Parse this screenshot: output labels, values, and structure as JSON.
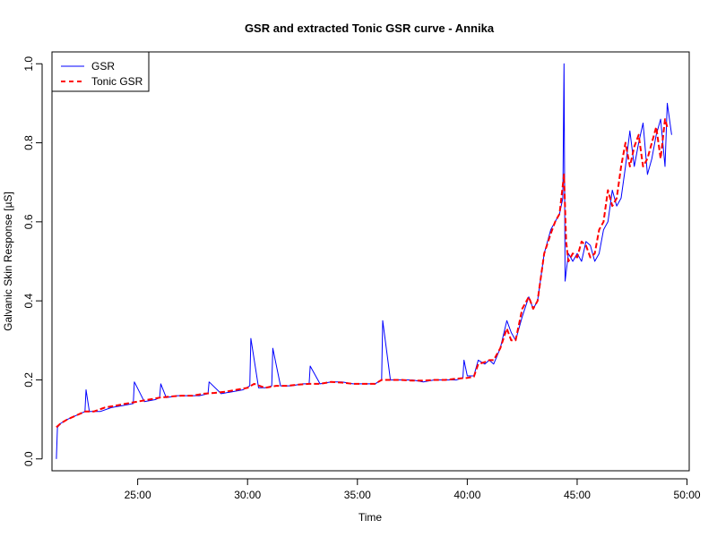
{
  "chart_data": {
    "type": "line",
    "title": "GSR and extracted Tonic GSR curve - Annika",
    "xlabel": "Time",
    "ylabel": "Galvanic Skin Response [µS]",
    "xlim_minutes": [
      21.1,
      50.1
    ],
    "ylim": [
      -0.03,
      1.03
    ],
    "x_ticks": [
      {
        "value": 25,
        "label": "25:00"
      },
      {
        "value": 30,
        "label": "30:00"
      },
      {
        "value": 35,
        "label": "35:00"
      },
      {
        "value": 40,
        "label": "40:00"
      },
      {
        "value": 45,
        "label": "45:00"
      },
      {
        "value": 50,
        "label": "50:00"
      }
    ],
    "y_ticks": [
      {
        "value": 0.0,
        "label": "0.0"
      },
      {
        "value": 0.2,
        "label": "0.2"
      },
      {
        "value": 0.4,
        "label": "0.4"
      },
      {
        "value": 0.6,
        "label": "0.6"
      },
      {
        "value": 0.8,
        "label": "0.8"
      },
      {
        "value": 1.0,
        "label": "1.0"
      }
    ],
    "legend": {
      "position": "top-left",
      "entries": [
        {
          "label": "GSR",
          "color": "#0000ff",
          "style": "solid"
        },
        {
          "label": "Tonic GSR",
          "color": "#ff0000",
          "style": "dashed"
        }
      ]
    },
    "series": [
      {
        "name": "GSR",
        "color": "#0000ff",
        "x": [
          21.3,
          21.35,
          21.5,
          21.8,
          22.2,
          22.6,
          22.65,
          22.8,
          23.3,
          23.8,
          24.3,
          24.8,
          24.85,
          25.3,
          25.8,
          26.0,
          26.05,
          26.3,
          26.8,
          27.3,
          27.8,
          28.2,
          28.25,
          28.8,
          29.3,
          29.8,
          30.1,
          30.15,
          30.5,
          30.8,
          31.1,
          31.15,
          31.5,
          32.0,
          32.5,
          32.8,
          32.85,
          33.3,
          33.8,
          34.3,
          34.8,
          35.3,
          35.8,
          36.1,
          36.15,
          36.5,
          37.0,
          37.5,
          38.0,
          38.5,
          39.0,
          39.5,
          39.8,
          39.85,
          40.0,
          40.3,
          40.5,
          40.8,
          41.0,
          41.2,
          41.5,
          41.8,
          42.0,
          42.2,
          42.5,
          42.8,
          43.0,
          43.2,
          43.5,
          43.8,
          44.0,
          44.2,
          44.35,
          44.4,
          44.45,
          44.6,
          44.8,
          45.0,
          45.2,
          45.4,
          45.6,
          45.8,
          46.0,
          46.2,
          46.4,
          46.6,
          46.8,
          47.0,
          47.2,
          47.4,
          47.6,
          47.8,
          48.0,
          48.2,
          48.4,
          48.6,
          48.8,
          49.0,
          49.1,
          49.3
        ],
        "values": [
          0.0,
          0.08,
          0.09,
          0.1,
          0.11,
          0.12,
          0.175,
          0.12,
          0.12,
          0.13,
          0.135,
          0.14,
          0.195,
          0.145,
          0.15,
          0.155,
          0.19,
          0.155,
          0.16,
          0.16,
          0.16,
          0.165,
          0.195,
          0.165,
          0.17,
          0.175,
          0.185,
          0.305,
          0.18,
          0.18,
          0.185,
          0.28,
          0.185,
          0.185,
          0.19,
          0.19,
          0.235,
          0.19,
          0.195,
          0.195,
          0.19,
          0.19,
          0.19,
          0.2,
          0.35,
          0.2,
          0.2,
          0.2,
          0.195,
          0.2,
          0.2,
          0.2,
          0.205,
          0.25,
          0.21,
          0.21,
          0.25,
          0.24,
          0.25,
          0.24,
          0.28,
          0.35,
          0.32,
          0.3,
          0.36,
          0.41,
          0.38,
          0.4,
          0.52,
          0.58,
          0.6,
          0.62,
          0.66,
          1.0,
          0.45,
          0.52,
          0.5,
          0.52,
          0.5,
          0.55,
          0.54,
          0.5,
          0.52,
          0.58,
          0.6,
          0.68,
          0.64,
          0.66,
          0.74,
          0.83,
          0.74,
          0.8,
          0.85,
          0.72,
          0.76,
          0.82,
          0.86,
          0.74,
          0.9,
          0.82
        ]
      },
      {
        "name": "Tonic GSR",
        "color": "#ff0000",
        "x": [
          21.3,
          21.5,
          21.8,
          22.2,
          22.6,
          23.0,
          23.5,
          24.0,
          24.5,
          25.0,
          25.5,
          26.0,
          26.5,
          27.0,
          27.5,
          28.0,
          28.5,
          29.0,
          29.5,
          30.0,
          30.3,
          30.8,
          31.3,
          31.8,
          32.3,
          32.8,
          33.3,
          33.8,
          34.3,
          34.8,
          35.3,
          35.8,
          36.1,
          36.5,
          37.0,
          37.5,
          38.0,
          38.5,
          39.0,
          39.5,
          40.0,
          40.3,
          40.5,
          40.8,
          41.0,
          41.2,
          41.5,
          41.8,
          42.0,
          42.2,
          42.5,
          42.8,
          43.0,
          43.2,
          43.5,
          43.8,
          44.0,
          44.2,
          44.4,
          44.5,
          44.6,
          44.8,
          45.0,
          45.2,
          45.4,
          45.6,
          45.8,
          46.0,
          46.2,
          46.4,
          46.6,
          46.8,
          47.0,
          47.2,
          47.4,
          47.6,
          47.8,
          48.0,
          48.2,
          48.4,
          48.6,
          48.8,
          49.0,
          49.1
        ],
        "values": [
          0.08,
          0.09,
          0.1,
          0.11,
          0.12,
          0.12,
          0.13,
          0.135,
          0.14,
          0.145,
          0.15,
          0.155,
          0.158,
          0.16,
          0.16,
          0.165,
          0.167,
          0.17,
          0.175,
          0.18,
          0.19,
          0.18,
          0.185,
          0.185,
          0.188,
          0.19,
          0.19,
          0.195,
          0.193,
          0.19,
          0.19,
          0.19,
          0.2,
          0.2,
          0.2,
          0.198,
          0.198,
          0.2,
          0.2,
          0.203,
          0.205,
          0.208,
          0.24,
          0.245,
          0.25,
          0.25,
          0.28,
          0.33,
          0.3,
          0.3,
          0.38,
          0.41,
          0.38,
          0.4,
          0.52,
          0.57,
          0.6,
          0.62,
          0.72,
          0.55,
          0.5,
          0.52,
          0.51,
          0.55,
          0.54,
          0.51,
          0.52,
          0.58,
          0.6,
          0.68,
          0.64,
          0.66,
          0.74,
          0.8,
          0.74,
          0.79,
          0.82,
          0.74,
          0.76,
          0.8,
          0.84,
          0.76,
          0.86,
          0.84
        ]
      }
    ]
  }
}
